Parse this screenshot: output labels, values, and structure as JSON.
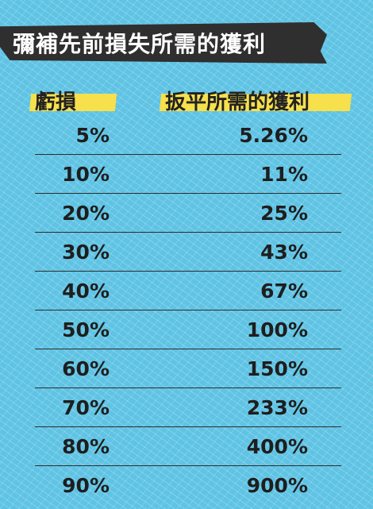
{
  "title": "彌補先前損失所需的獲利",
  "chart_data": {
    "type": "table",
    "columns": [
      "虧損",
      "扳平所需的獲利"
    ],
    "rows": [
      [
        "5%",
        "5.26%"
      ],
      [
        "10%",
        "11%"
      ],
      [
        "20%",
        "25%"
      ],
      [
        "30%",
        "43%"
      ],
      [
        "40%",
        "67%"
      ],
      [
        "50%",
        "100%"
      ],
      [
        "60%",
        "150%"
      ],
      [
        "70%",
        "233%"
      ],
      [
        "80%",
        "400%"
      ],
      [
        "90%",
        "900%"
      ]
    ]
  },
  "colors": {
    "background": "#5fc3e4",
    "title_band": "#2f2f2f",
    "header_highlight": "#f6e04c",
    "text": "#1e1e1e"
  }
}
